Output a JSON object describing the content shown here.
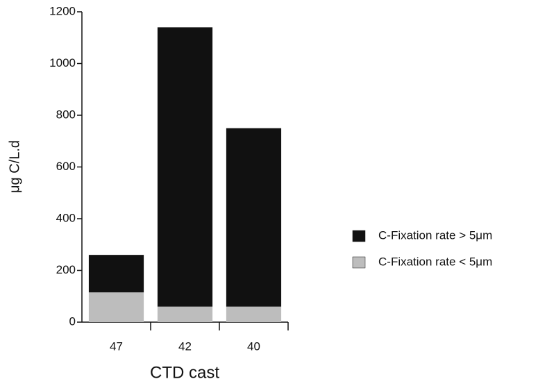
{
  "chart_data": {
    "type": "stacked-bar",
    "categories": [
      "47",
      "42",
      "40"
    ],
    "series": [
      {
        "name": "C-Fixation rate < 5μm",
        "color": "#bdbdbd",
        "values": [
          115,
          60,
          60
        ]
      },
      {
        "name": "C-Fixation rate > 5μm",
        "color": "#111111",
        "values": [
          145,
          1080,
          690
        ]
      }
    ],
    "ylim": [
      0,
      1200
    ],
    "yticks": [
      0,
      200,
      400,
      600,
      800,
      1000,
      1200
    ],
    "xlabel": "CTD cast",
    "ylabel": "μg C/L.d",
    "legend": "right"
  }
}
